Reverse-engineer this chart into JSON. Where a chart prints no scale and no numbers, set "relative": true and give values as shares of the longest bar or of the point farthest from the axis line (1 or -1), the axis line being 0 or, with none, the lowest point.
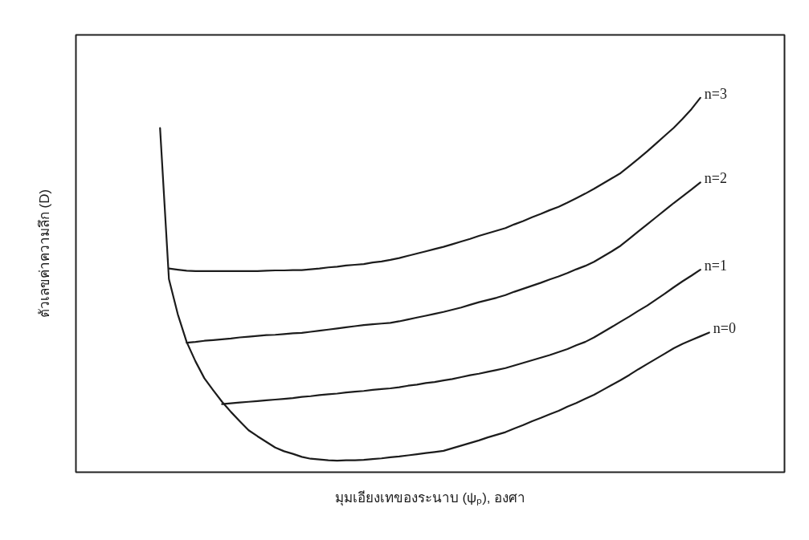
{
  "chart_data": {
    "type": "line",
    "relative": true,
    "xlabel": "มุมเอียงเทของระนาบ (ψₚ), องศา",
    "ylabel": "ตัวเลขค่าความลึก (D)",
    "categories": [
      null,
      null,
      null,
      null,
      null,
      null,
      null,
      null,
      null,
      null,
      null,
      null,
      null,
      null,
      null,
      null,
      null,
      null,
      null,
      null,
      null,
      null,
      null,
      null,
      null,
      null,
      null,
      null,
      null,
      null,
      null,
      null,
      null,
      null,
      null,
      null,
      null,
      null,
      null,
      null,
      null,
      null,
      null,
      null,
      null,
      null,
      null,
      null,
      null,
      null,
      null,
      null,
      null,
      null,
      null,
      null,
      null,
      null,
      null,
      null,
      null,
      null,
      null,
      null,
      null,
      null,
      null,
      null,
      null,
      null,
      null,
      null,
      null,
      null,
      null,
      null,
      null,
      null,
      null,
      null
    ],
    "series": [
      {
        "name": "n=3",
        "color": "#1c1c1c",
        "values": [
          null,
          null,
          null,
          null,
          null,
          null,
          null,
          null,
          null,
          null,
          0.544,
          0.541,
          0.538,
          0.537,
          0.537,
          0.537,
          0.537,
          0.537,
          0.537,
          0.537,
          0.537,
          0.538,
          0.539,
          0.539,
          0.54,
          0.54,
          0.542,
          0.544,
          0.547,
          0.549,
          0.552,
          0.554,
          0.556,
          0.56,
          0.563,
          0.567,
          0.572,
          0.578,
          0.584,
          0.59,
          0.596,
          0.602,
          0.609,
          0.616,
          0.623,
          0.631,
          0.638,
          0.645,
          0.652,
          0.662,
          0.671,
          0.681,
          0.69,
          0.7,
          0.709,
          0.72,
          0.732,
          0.744,
          0.757,
          0.771,
          0.785,
          0.799,
          0.818,
          0.837,
          0.857,
          0.878,
          0.899,
          0.92,
          0.944,
          0.97,
          1,
          null,
          null,
          null,
          null,
          null,
          null,
          null,
          null,
          null
        ]
      },
      {
        "name": "n=2",
        "color": "#1c1c1c",
        "values": [
          null,
          null,
          null,
          null,
          null,
          null,
          null,
          null,
          null,
          null,
          null,
          null,
          0.346,
          0.348,
          0.351,
          0.353,
          0.355,
          0.357,
          0.36,
          0.362,
          0.364,
          0.366,
          0.367,
          0.369,
          0.371,
          0.372,
          0.375,
          0.378,
          0.381,
          0.384,
          0.387,
          0.39,
          0.393,
          0.395,
          0.397,
          0.399,
          0.403,
          0.408,
          0.413,
          0.418,
          0.423,
          0.428,
          0.434,
          0.44,
          0.447,
          0.454,
          0.46,
          0.466,
          0.473,
          0.482,
          0.49,
          0.498,
          0.506,
          0.515,
          0.523,
          0.532,
          0.542,
          0.551,
          0.562,
          0.576,
          0.59,
          0.605,
          0.624,
          0.643,
          0.662,
          0.681,
          0.7,
          0.719,
          0.737,
          0.755,
          0.774,
          null,
          null,
          null,
          null,
          null,
          null,
          null,
          null,
          null
        ]
      },
      {
        "name": "n=1",
        "color": "#1c1c1c",
        "values": [
          null,
          null,
          null,
          null,
          null,
          null,
          null,
          null,
          null,
          null,
          null,
          null,
          null,
          null,
          null,
          null,
          0.182,
          0.184,
          0.186,
          0.188,
          0.19,
          0.192,
          0.194,
          0.196,
          0.198,
          0.201,
          0.203,
          0.206,
          0.208,
          0.21,
          0.213,
          0.215,
          0.217,
          0.22,
          0.222,
          0.224,
          0.227,
          0.231,
          0.234,
          0.238,
          0.241,
          0.245,
          0.249,
          0.254,
          0.259,
          0.263,
          0.268,
          0.273,
          0.278,
          0.285,
          0.292,
          0.299,
          0.306,
          0.313,
          0.321,
          0.329,
          0.339,
          0.348,
          0.36,
          0.374,
          0.388,
          0.402,
          0.416,
          0.431,
          0.445,
          0.461,
          0.477,
          0.494,
          0.51,
          0.525,
          0.541,
          null,
          null,
          null,
          null,
          null,
          null,
          null,
          null,
          null
        ]
      },
      {
        "name": "n=0",
        "color": "#1c1c1c",
        "values": [
          null,
          null,
          null,
          null,
          null,
          null,
          null,
          null,
          null,
          0.919,
          0.516,
          0.422,
          0.348,
          0.296,
          0.251,
          0.219,
          0.188,
          0.161,
          0.136,
          0.112,
          0.096,
          0.081,
          0.066,
          0.056,
          0.049,
          0.041,
          0.036,
          0.034,
          0.032,
          0.031,
          0.032,
          0.032,
          0.033,
          0.035,
          0.037,
          0.04,
          0.042,
          0.045,
          0.048,
          0.051,
          0.054,
          0.057,
          0.064,
          0.071,
          0.078,
          0.085,
          0.093,
          0.1,
          0.107,
          0.117,
          0.126,
          0.136,
          0.145,
          0.155,
          0.164,
          0.175,
          0.185,
          0.196,
          0.207,
          0.22,
          0.233,
          0.246,
          0.26,
          0.275,
          0.289,
          0.303,
          0.317,
          0.331,
          0.343,
          0.353,
          0.363,
          0.373,
          null,
          null,
          null,
          null,
          null,
          null,
          null,
          null
        ]
      }
    ]
  }
}
